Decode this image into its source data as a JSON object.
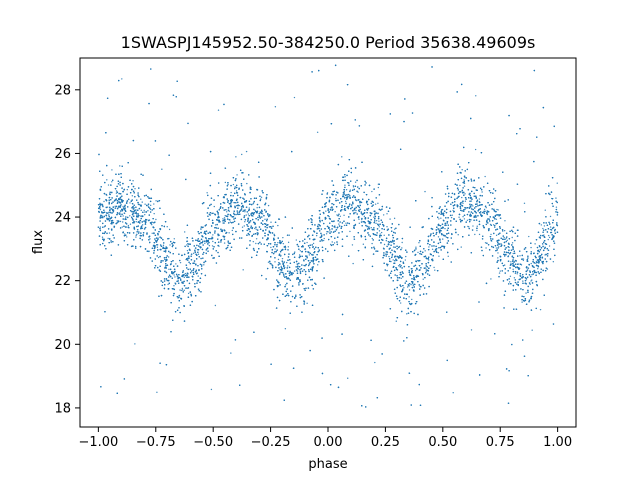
{
  "chart_data": {
    "type": "scatter",
    "title": "1SWASPJ145952.50-384250.0 Period 35638.49609s",
    "xlabel": "phase",
    "ylabel": "flux",
    "xlim": [
      -1.08,
      1.08
    ],
    "ylim": [
      17.4,
      29.0
    ],
    "xticks": [
      -1.0,
      -0.75,
      -0.5,
      -0.25,
      0.0,
      0.25,
      0.5,
      0.75,
      1.0
    ],
    "xtick_labels": [
      "−1.00",
      "−0.75",
      "−0.50",
      "−0.25",
      "0.00",
      "0.25",
      "0.50",
      "0.75",
      "1.00"
    ],
    "yticks": [
      18,
      20,
      22,
      24,
      26,
      28
    ],
    "ytick_labels": [
      "18",
      "20",
      "22",
      "24",
      "26",
      "28"
    ],
    "grid": false,
    "legend": "none",
    "point_color": "#1f77b4",
    "series": [
      {
        "x": [
          -1.0,
          -0.9,
          -0.8,
          -0.7,
          -0.65,
          -0.6,
          -0.5,
          -0.4,
          -0.3,
          -0.2,
          -0.15,
          -0.1,
          0.0,
          0.1,
          0.2,
          0.3,
          0.35,
          0.4,
          0.5,
          0.6,
          0.7,
          0.8,
          0.85,
          0.9,
          1.0
        ],
        "y": [
          23.9,
          24.4,
          24.0,
          22.6,
          22.0,
          22.4,
          23.6,
          24.4,
          23.9,
          22.6,
          22.1,
          22.6,
          23.9,
          24.5,
          23.9,
          22.7,
          22.0,
          22.4,
          23.6,
          24.5,
          23.9,
          22.6,
          22.1,
          22.5,
          24.0
        ],
        "scatter_sd": 0.55
      }
    ]
  }
}
